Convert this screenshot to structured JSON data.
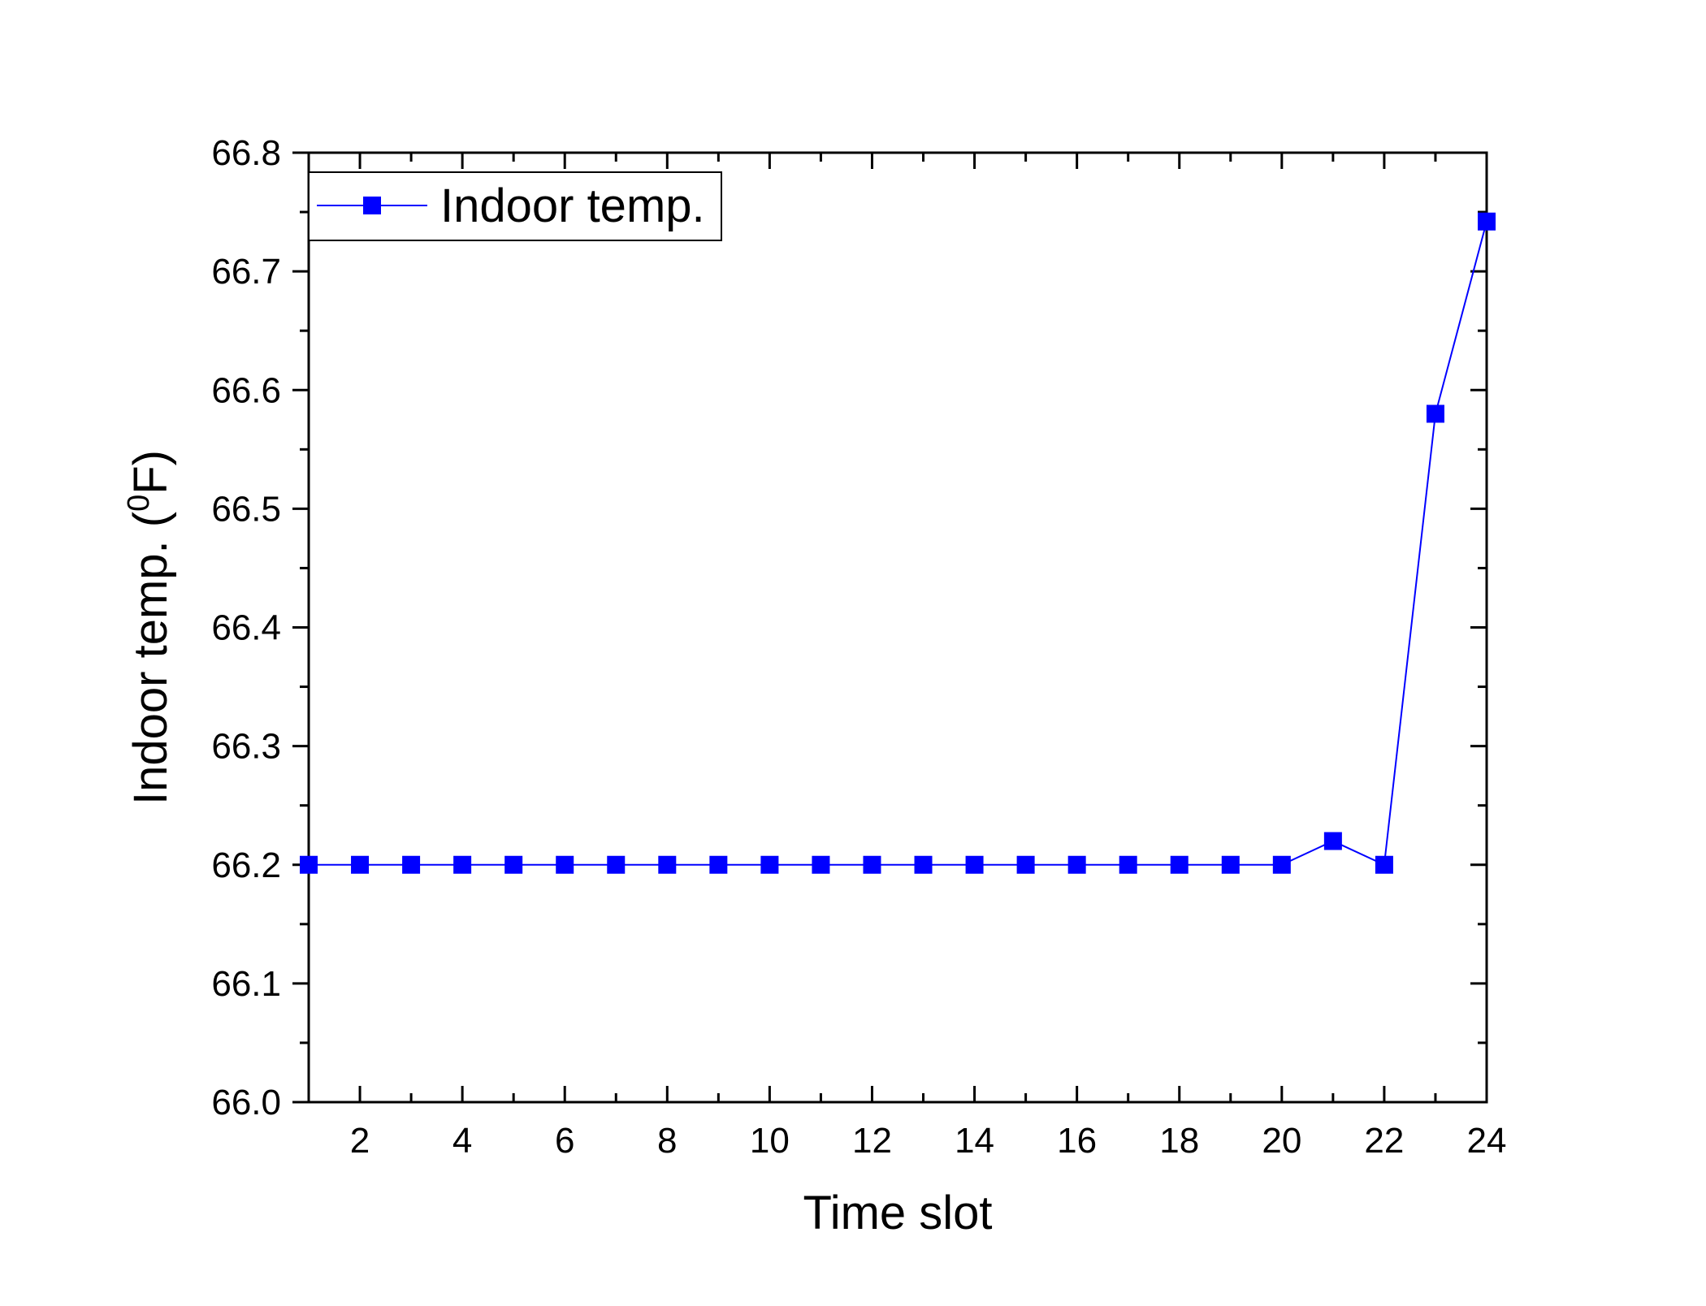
{
  "chart_data": {
    "type": "line",
    "title": "",
    "xlabel": "Time slot",
    "ylabel_main": "Indoor temp. (",
    "ylabel_sup": "0",
    "ylabel_end": "F)",
    "xlim": [
      1,
      24
    ],
    "ylim": [
      66.0,
      66.8
    ],
    "x_ticks": [
      2,
      4,
      6,
      8,
      10,
      12,
      14,
      16,
      18,
      20,
      22,
      24
    ],
    "y_ticks": [
      "66.0",
      "66.1",
      "66.2",
      "66.3",
      "66.4",
      "66.5",
      "66.6",
      "66.7",
      "66.8"
    ],
    "grid": false,
    "legend_position": "top-left",
    "series": [
      {
        "name": "Indoor temp.",
        "color": "#0000ff",
        "marker": "square",
        "x": [
          1,
          2,
          3,
          4,
          5,
          6,
          7,
          8,
          9,
          10,
          11,
          12,
          13,
          14,
          15,
          16,
          17,
          18,
          19,
          20,
          21,
          22,
          23,
          24
        ],
        "values": [
          66.2,
          66.2,
          66.2,
          66.2,
          66.2,
          66.2,
          66.2,
          66.2,
          66.2,
          66.2,
          66.2,
          66.2,
          66.2,
          66.2,
          66.2,
          66.2,
          66.2,
          66.2,
          66.2,
          66.2,
          66.22,
          66.2,
          66.58,
          66.742
        ]
      }
    ]
  }
}
